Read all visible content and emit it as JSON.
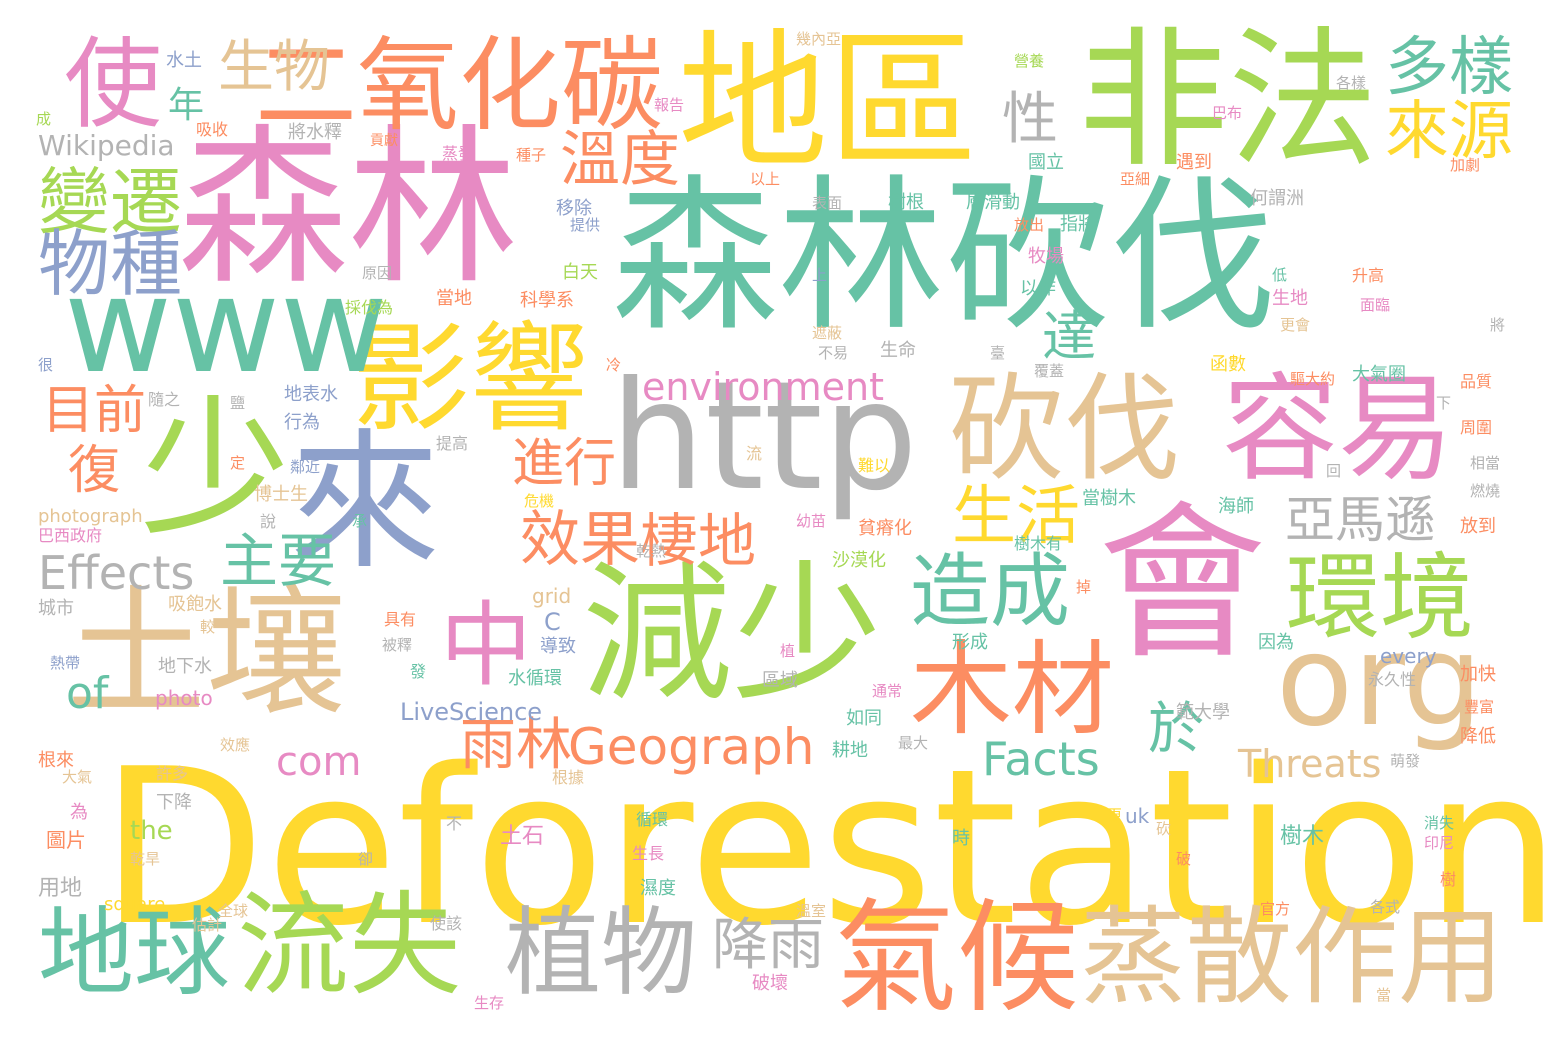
{
  "palette": {
    "teal": "#66c2a5",
    "orange": "#fc8d62",
    "blue": "#8da0cb",
    "pink": "#e78ac3",
    "green": "#a6d854",
    "yellow": "#ffd92f",
    "tan": "#e5c494",
    "gray": "#b3b3b3"
  },
  "words": [
    {
      "text": "Deforestation",
      "color": "#ffd92f"
    },
    {
      "text": "森林砍伐",
      "color": "#66c2a5"
    },
    {
      "text": "森林",
      "color": "#e78ac3"
    },
    {
      "text": "地區",
      "color": "#ffd92f"
    },
    {
      "text": "非法",
      "color": "#a6d854"
    },
    {
      "text": "http",
      "color": "#b3b3b3"
    },
    {
      "text": "會",
      "color": "#e78ac3"
    },
    {
      "text": "減少",
      "color": "#a6d854"
    },
    {
      "text": "土壤",
      "color": "#e5c494"
    },
    {
      "text": "來",
      "color": "#8da0cb"
    },
    {
      "text": "少",
      "color": "#a6d854"
    },
    {
      "text": "氣候",
      "color": "#fc8d62"
    },
    {
      "text": "蒸散作用",
      "color": "#e5c494"
    },
    {
      "text": "二氧化碳",
      "color": "#fc8d62"
    },
    {
      "text": "影響",
      "color": "#ffd92f"
    },
    {
      "text": "www",
      "color": "#66c2a5"
    },
    {
      "text": "砍伐",
      "color": "#e5c494"
    },
    {
      "text": "容易",
      "color": "#e78ac3"
    },
    {
      "text": "org",
      "color": "#e5c494"
    },
    {
      "text": "植物",
      "color": "#b3b3b3"
    },
    {
      "text": "流失",
      "color": "#a6d854"
    },
    {
      "text": "地球",
      "color": "#66c2a5"
    },
    {
      "text": "使",
      "color": "#e78ac3"
    },
    {
      "text": "環境",
      "color": "#a6d854"
    },
    {
      "text": "木材",
      "color": "#fc8d62"
    },
    {
      "text": "中",
      "color": "#e78ac3"
    },
    {
      "text": "造成",
      "color": "#66c2a5"
    },
    {
      "text": "多樣",
      "color": "#66c2a5"
    },
    {
      "text": "來源",
      "color": "#ffd92f"
    },
    {
      "text": "變遷",
      "color": "#a6d854"
    },
    {
      "text": "物種",
      "color": "#8da0cb"
    },
    {
      "text": "生物",
      "color": "#e5c494"
    },
    {
      "text": "溫度",
      "color": "#fc8d62"
    },
    {
      "text": "生活",
      "color": "#ffd92f"
    },
    {
      "text": "亞馬遜",
      "color": "#b3b3b3"
    },
    {
      "text": "效果",
      "color": "#fc8d62"
    },
    {
      "text": "棲地",
      "color": "#fc8d62"
    },
    {
      "text": "主要",
      "color": "#66c2a5"
    },
    {
      "text": "雨林",
      "color": "#fc8d62"
    },
    {
      "text": "Geograph",
      "color": "#fc8d62"
    },
    {
      "text": "Effects",
      "color": "#b3b3b3"
    },
    {
      "text": "降雨",
      "color": "#b3b3b3"
    },
    {
      "text": "Facts",
      "color": "#66c2a5"
    },
    {
      "text": "Threats",
      "color": "#e5c494"
    },
    {
      "text": "environment",
      "color": "#e78ac3"
    },
    {
      "text": "目前",
      "color": "#fc8d62"
    },
    {
      "text": "進行",
      "color": "#fc8d62"
    },
    {
      "text": "復",
      "color": "#fc8d62"
    },
    {
      "text": "達",
      "color": "#66c2a5"
    },
    {
      "text": "於",
      "color": "#66c2a5"
    },
    {
      "text": "性",
      "color": "#b3b3b3"
    },
    {
      "text": "年",
      "color": "#66c2a5"
    },
    {
      "text": "com",
      "color": "#e78ac3"
    },
    {
      "text": "of",
      "color": "#66c2a5"
    },
    {
      "text": "Wikipedia",
      "color": "#b3b3b3"
    },
    {
      "text": "LiveScience",
      "color": "#8da0cb"
    },
    {
      "text": "photograph",
      "color": "#e5c494"
    },
    {
      "text": "square",
      "color": "#ffd92f"
    },
    {
      "text": "grid",
      "color": "#e5c494"
    },
    {
      "text": "the",
      "color": "#a6d854"
    },
    {
      "text": "photo",
      "color": "#e78ac3"
    },
    {
      "text": "C",
      "color": "#8da0cb"
    },
    {
      "text": "every",
      "color": "#8da0cb"
    },
    {
      "text": "uk",
      "color": "#8da0cb"
    },
    {
      "text": "水土",
      "color": "#8da0cb"
    },
    {
      "text": "吸收",
      "color": "#fc8d62"
    },
    {
      "text": "將水釋",
      "color": "#b3b3b3"
    },
    {
      "text": "蒸發",
      "color": "#e78ac3"
    },
    {
      "text": "種子",
      "color": "#fc8d62"
    },
    {
      "text": "移除",
      "color": "#8da0cb"
    },
    {
      "text": "提供",
      "color": "#8da0cb"
    },
    {
      "text": "白天",
      "color": "#a6d854"
    },
    {
      "text": "原因",
      "color": "#b3b3b3"
    },
    {
      "text": "採伐為",
      "color": "#a6d854"
    },
    {
      "text": "當地",
      "color": "#fc8d62"
    },
    {
      "text": "科學系",
      "color": "#fc8d62"
    },
    {
      "text": "地表水",
      "color": "#8da0cb"
    },
    {
      "text": "隨之",
      "color": "#b3b3b3"
    },
    {
      "text": "行為",
      "color": "#8da0cb"
    },
    {
      "text": "鄰近",
      "color": "#8da0cb"
    },
    {
      "text": "提高",
      "color": "#b3b3b3"
    },
    {
      "text": "博士生",
      "color": "#e5c494"
    },
    {
      "text": "巴西政府",
      "color": "#e78ac3"
    },
    {
      "text": "城市",
      "color": "#b3b3b3"
    },
    {
      "text": "吸飽水",
      "color": "#e5c494"
    },
    {
      "text": "熱帶",
      "color": "#8da0cb"
    },
    {
      "text": "地下水",
      "color": "#b3b3b3"
    },
    {
      "text": "具有",
      "color": "#fc8d62"
    },
    {
      "text": "被釋",
      "color": "#b3b3b3"
    },
    {
      "text": "導致",
      "color": "#8da0cb"
    },
    {
      "text": "發",
      "color": "#66c2a5"
    },
    {
      "text": "水循環",
      "color": "#66c2a5"
    },
    {
      "text": "國立",
      "color": "#66c2a5"
    },
    {
      "text": "遇到",
      "color": "#fc8d62"
    },
    {
      "text": "何謂洲",
      "color": "#b3b3b3"
    },
    {
      "text": "樹根",
      "color": "#66c2a5"
    },
    {
      "text": "層滑動",
      "color": "#66c2a5"
    },
    {
      "text": "指將",
      "color": "#66c2a5"
    },
    {
      "text": "放出",
      "color": "#fc8d62"
    },
    {
      "text": "牧場",
      "color": "#e78ac3"
    },
    {
      "text": "以作",
      "color": "#66c2a5"
    },
    {
      "text": "生命",
      "color": "#b3b3b3"
    },
    {
      "text": "不易",
      "color": "#b3b3b3"
    },
    {
      "text": "大氣圈",
      "color": "#66c2a5"
    },
    {
      "text": "升高",
      "color": "#fc8d62"
    },
    {
      "text": "生地",
      "color": "#e78ac3"
    },
    {
      "text": "函數",
      "color": "#ffd92f"
    },
    {
      "text": "當樹木",
      "color": "#66c2a5"
    },
    {
      "text": "海師",
      "color": "#66c2a5"
    },
    {
      "text": "樹木有",
      "color": "#66c2a5"
    },
    {
      "text": "沙漠化",
      "color": "#a6d854"
    },
    {
      "text": "貧瘠化",
      "color": "#fc8d62"
    },
    {
      "text": "難以",
      "color": "#ffd92f"
    },
    {
      "text": "因為",
      "color": "#66c2a5"
    },
    {
      "text": "永久性",
      "color": "#b3b3b3"
    },
    {
      "text": "加快",
      "color": "#fc8d62"
    },
    {
      "text": "降低",
      "color": "#fc8d62"
    },
    {
      "text": "範大學",
      "color": "#b3b3b3"
    },
    {
      "text": "形成",
      "color": "#66c2a5"
    },
    {
      "text": "區域",
      "color": "#b3b3b3"
    },
    {
      "text": "通常",
      "color": "#e78ac3"
    },
    {
      "text": "如同",
      "color": "#66c2a5"
    },
    {
      "text": "耕地",
      "color": "#66c2a5"
    },
    {
      "text": "最大",
      "color": "#b3b3b3"
    },
    {
      "text": "根據",
      "color": "#e5c494"
    },
    {
      "text": "土石",
      "color": "#e78ac3"
    },
    {
      "text": "不",
      "color": "#b3b3b3"
    },
    {
      "text": "循環",
      "color": "#66c2a5"
    },
    {
      "text": "生長",
      "color": "#e78ac3"
    },
    {
      "text": "濕度",
      "color": "#66c2a5"
    },
    {
      "text": "時",
      "color": "#66c2a5"
    },
    {
      "text": "樹木",
      "color": "#66c2a5"
    },
    {
      "text": "消失",
      "color": "#66c2a5"
    },
    {
      "text": "印尼",
      "color": "#e78ac3"
    },
    {
      "text": "樹",
      "color": "#fc8d62"
    },
    {
      "text": "官方",
      "color": "#fc8d62"
    },
    {
      "text": "各式",
      "color": "#b3b3b3"
    },
    {
      "text": "使該",
      "color": "#b3b3b3"
    },
    {
      "text": "破壞",
      "color": "#e78ac3"
    },
    {
      "text": "全球",
      "color": "#e5c494"
    },
    {
      "text": "估計",
      "color": "#e5c494"
    },
    {
      "text": "生存",
      "color": "#e78ac3"
    },
    {
      "text": "用地",
      "color": "#b3b3b3"
    },
    {
      "text": "乾旱",
      "color": "#e5c494"
    },
    {
      "text": "圖片",
      "color": "#fc8d62"
    },
    {
      "text": "為",
      "color": "#e78ac3"
    },
    {
      "text": "下降",
      "color": "#b3b3b3"
    },
    {
      "text": "許多",
      "color": "#e5c494"
    },
    {
      "text": "大氣",
      "color": "#e5c494"
    },
    {
      "text": "根來",
      "color": "#fc8d62"
    },
    {
      "text": "效應",
      "color": "#e5c494"
    },
    {
      "text": "卻",
      "color": "#b3b3b3"
    },
    {
      "text": "更",
      "color": "#ffd92f"
    },
    {
      "text": "砍",
      "color": "#e5c494"
    },
    {
      "text": "破",
      "color": "#fc8d62"
    },
    {
      "text": "溫室",
      "color": "#e5c494"
    },
    {
      "text": "當",
      "color": "#e5c494"
    },
    {
      "text": "放到",
      "color": "#fc8d62"
    },
    {
      "text": "燃燒",
      "color": "#b3b3b3"
    },
    {
      "text": "相當",
      "color": "#b3b3b3"
    },
    {
      "text": "周圍",
      "color": "#fc8d62"
    },
    {
      "text": "品質",
      "color": "#fc8d62"
    },
    {
      "text": "下",
      "color": "#b3b3b3"
    },
    {
      "text": "豐富",
      "color": "#fc8d62"
    },
    {
      "text": "將",
      "color": "#b3b3b3"
    },
    {
      "text": "面臨",
      "color": "#e78ac3"
    },
    {
      "text": "更會",
      "color": "#e5c494"
    },
    {
      "text": "低",
      "color": "#66c2a5"
    },
    {
      "text": "加劇",
      "color": "#fc8d62"
    },
    {
      "text": "亞細",
      "color": "#fc8d62"
    },
    {
      "text": "表面",
      "color": "#b3b3b3"
    },
    {
      "text": "以上",
      "color": "#fc8d62"
    },
    {
      "text": "巴布",
      "color": "#e78ac3"
    },
    {
      "text": "各樣",
      "color": "#b3b3b3"
    },
    {
      "text": "幾內亞",
      "color": "#e5c494"
    },
    {
      "text": "營養",
      "color": "#a6d854"
    },
    {
      "text": "報告",
      "color": "#e78ac3"
    },
    {
      "text": "貢獻",
      "color": "#fc8d62"
    },
    {
      "text": "成",
      "color": "#a6d854"
    },
    {
      "text": "很",
      "color": "#8da0cb"
    },
    {
      "text": "冷",
      "color": "#fc8d62"
    },
    {
      "text": "鹽",
      "color": "#b3b3b3"
    },
    {
      "text": "定",
      "color": "#fc8d62"
    },
    {
      "text": "說",
      "color": "#b3b3b3"
    },
    {
      "text": "承",
      "color": "#66c2a5"
    },
    {
      "text": "危機",
      "color": "#ffd92f"
    },
    {
      "text": "流",
      "color": "#e5c494"
    },
    {
      "text": "幼苗",
      "color": "#e78ac3"
    },
    {
      "text": "乾熱",
      "color": "#b3b3b3"
    },
    {
      "text": "較",
      "color": "#e5c494"
    },
    {
      "text": "植",
      "color": "#e78ac3"
    },
    {
      "text": "掉",
      "color": "#fc8d62"
    },
    {
      "text": "回",
      "color": "#b3b3b3"
    },
    {
      "text": "萌發",
      "color": "#b3b3b3"
    },
    {
      "text": "臺",
      "color": "#b3b3b3"
    },
    {
      "text": "覆蓋",
      "color": "#b3b3b3"
    },
    {
      "text": "遮蔽",
      "color": "#e5c494"
    },
    {
      "text": "上",
      "color": "#8da0cb"
    },
    {
      "text": "驅大約",
      "color": "#fc8d62"
    }
  ]
}
